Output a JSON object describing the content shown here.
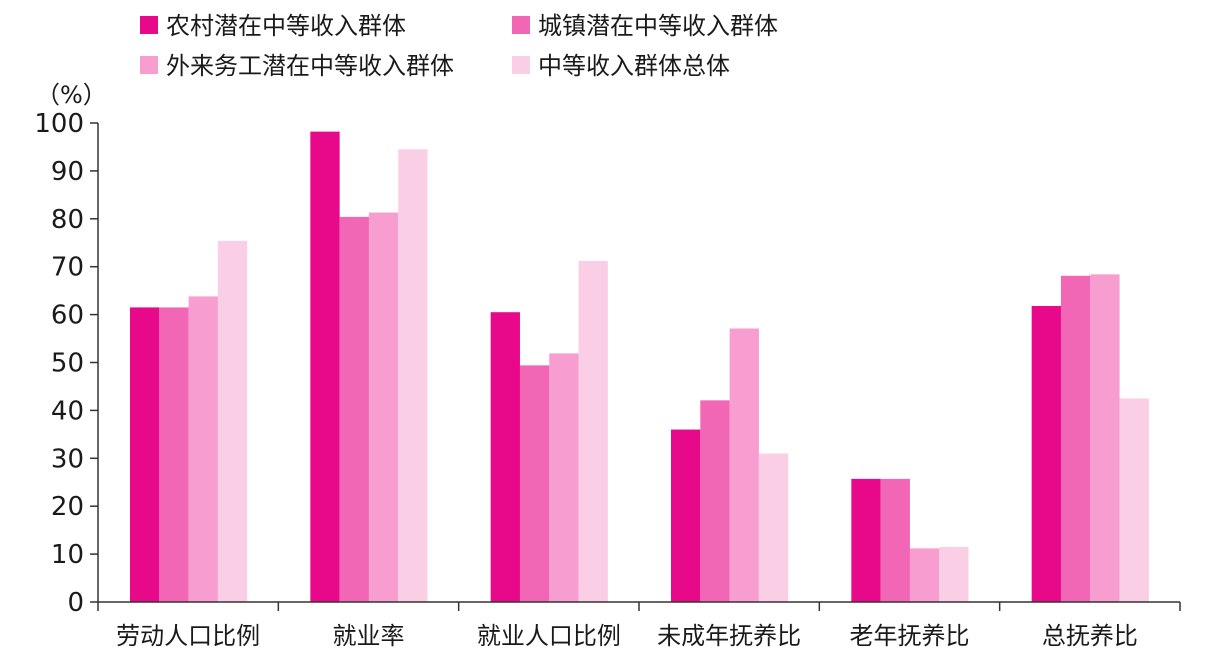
{
  "chart_data": {
    "type": "bar",
    "unit_label": "（%）",
    "categories": [
      "劳动人口比例",
      "就业率",
      "就业人口比例",
      "未成年抚养比",
      "老年抚养比",
      "总抚养比"
    ],
    "series": [
      {
        "name": "农村潜在中等收入群体",
        "color": "#E8088A",
        "values": [
          61.5,
          98.2,
          60.5,
          36.0,
          25.7,
          61.8
        ]
      },
      {
        "name": "城镇潜在中等收入群体",
        "color": "#F267B5",
        "values": [
          61.5,
          80.4,
          49.4,
          42.1,
          25.7,
          68.1
        ]
      },
      {
        "name": "外来务工潜在中等收入群体",
        "color": "#F79DCF",
        "values": [
          63.8,
          81.3,
          51.9,
          57.1,
          11.2,
          68.4
        ]
      },
      {
        "name": "中等收入群体总体",
        "color": "#FACFE6",
        "values": [
          75.4,
          94.5,
          71.2,
          31.0,
          11.5,
          42.5
        ]
      }
    ],
    "ylim": [
      0,
      100
    ],
    "yticks": [
      "0",
      "10",
      "20",
      "30",
      "40",
      "50",
      "60",
      "70",
      "80",
      "90",
      "100"
    ],
    "grid": false,
    "legend_position": "top"
  }
}
